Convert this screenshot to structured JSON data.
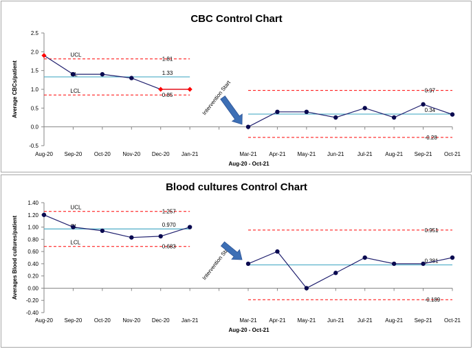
{
  "colors": {
    "series": "#1f1f6e",
    "marker": "#0a0a50",
    "pre_points": "#ff0000",
    "limit": "#ff0000",
    "center": "#4bacc6",
    "arrow": "#3d6fb5",
    "axis": "#868686"
  },
  "chart_data": [
    {
      "type": "line",
      "title": "CBC Control Chart",
      "xlabel": "Aug-20 - Oct-21",
      "ylabel": "Average CBCs/patient",
      "ylim": [
        -0.5,
        2.5
      ],
      "yticks": [
        "2.5",
        "2.0",
        "1.5",
        "1.0",
        "0.5",
        "0.0",
        "-0.5"
      ],
      "categories": [
        "Aug-20",
        "Sep-20",
        "Oct-20",
        "Nov-20",
        "Dec-20",
        "Jan-21",
        "",
        "Mar-21",
        "Apr-21",
        "May-21",
        "Jun-21",
        "Jul-21",
        "Aug-21",
        "Sep-21",
        "Oct-21"
      ],
      "phases": [
        {
          "x": [
            "Aug-20",
            "Sep-20",
            "Oct-20",
            "Nov-20",
            "Dec-20",
            "Jan-21"
          ],
          "values": [
            1.9,
            1.4,
            1.4,
            1.3,
            1.0,
            1.0
          ],
          "out_of_control": [
            "Aug-20",
            "Dec-20",
            "Jan-21"
          ],
          "ucl": 1.81,
          "center": 1.33,
          "lcl": 0.85,
          "ucl_label": "1.81",
          "center_label": "1.33",
          "lcl_label": "0.85",
          "ucl_text": "UCL",
          "center_text": "CL",
          "lcl_text": "LCL"
        },
        {
          "x": [
            "Mar-21",
            "Apr-21",
            "May-21",
            "Jun-21",
            "Jul-21",
            "Aug-21",
            "Sep-21",
            "Oct-21"
          ],
          "values": [
            0.0,
            0.4,
            0.4,
            0.25,
            0.5,
            0.25,
            0.6,
            0.33
          ],
          "out_of_control": [],
          "ucl": 0.97,
          "center": 0.34,
          "lcl": -0.28,
          "ucl_label": "0.97",
          "center_label": "0.34",
          "lcl_label": "-0.28"
        }
      ],
      "annotation": "Intervention Start"
    },
    {
      "type": "line",
      "title": "Blood cultures Control Chart",
      "xlabel": "Aug-20 - Oct-21",
      "ylabel": "Averages Blood cultures/patient",
      "ylim": [
        -0.4,
        1.4
      ],
      "yticks": [
        "1.40",
        "1.20",
        "1.00",
        "0.80",
        "0.60",
        "0.40",
        "0.20",
        "0.00",
        "-0.20",
        "-0.40"
      ],
      "categories": [
        "Aug-20",
        "Sep-20",
        "Oct-20",
        "Nov-20",
        "Dec-20",
        "Jan-21",
        "",
        "Mar-21",
        "Apr-21",
        "May-21",
        "Jun-21",
        "Jul-21",
        "Aug-21",
        "Sep-21",
        "Oct-21"
      ],
      "phases": [
        {
          "x": [
            "Aug-20",
            "Sep-20",
            "Oct-20",
            "Nov-20",
            "Dec-20",
            "Jan-21"
          ],
          "values": [
            1.2,
            1.0,
            0.94,
            0.83,
            0.85,
            1.0
          ],
          "out_of_control": [],
          "ucl": 1.257,
          "center": 0.97,
          "lcl": 0.683,
          "ucl_label": "1.257",
          "center_label": "0.970",
          "lcl_label": "0.683",
          "ucl_text": "UCL",
          "center_text": "CL",
          "lcl_text": "LCL"
        },
        {
          "x": [
            "Mar-21",
            "Apr-21",
            "May-21",
            "Jun-21",
            "Jul-21",
            "Aug-21",
            "Sep-21",
            "Oct-21"
          ],
          "values": [
            0.4,
            0.6,
            0.0,
            0.25,
            0.5,
            0.4,
            0.4,
            0.5
          ],
          "out_of_control": [],
          "ucl": 0.951,
          "center": 0.381,
          "lcl": -0.189,
          "ucl_label": "0.951",
          "center_label": "0.381",
          "lcl_label": "-0.189"
        }
      ],
      "annotation": "Intervention Start"
    }
  ]
}
